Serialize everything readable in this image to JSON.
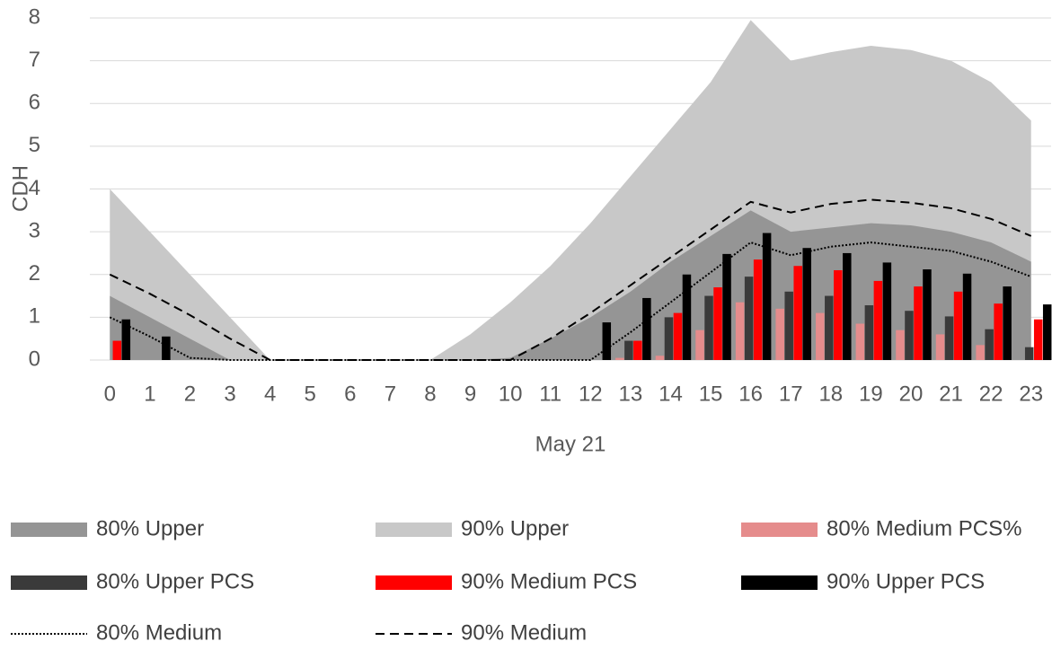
{
  "chart_data": {
    "type": "combo",
    "x_label": "May 21",
    "y_label": "CDH",
    "categories": [
      "0",
      "1",
      "2",
      "3",
      "4",
      "5",
      "6",
      "7",
      "8",
      "9",
      "10",
      "11",
      "12",
      "13",
      "14",
      "15",
      "16",
      "17",
      "18",
      "19",
      "20",
      "21",
      "22",
      "23"
    ],
    "ylim": [
      0,
      8
    ],
    "yticks": [
      0,
      1,
      2,
      3,
      4,
      5,
      6,
      7,
      8
    ],
    "grid": true,
    "series": [
      {
        "name": "80% Upper",
        "type": "area",
        "color": "#959595",
        "values": [
          1.5,
          1.0,
          0.5,
          0,
          0,
          0,
          0,
          0,
          0,
          0,
          0.05,
          0.5,
          1.0,
          1.6,
          2.3,
          2.9,
          3.5,
          3.0,
          3.1,
          3.2,
          3.15,
          3.0,
          2.75,
          2.3
        ]
      },
      {
        "name": "90% Upper",
        "type": "area",
        "color": "#c8c8c8",
        "values": [
          4.0,
          3.0,
          2.0,
          1.0,
          0,
          0,
          0,
          0,
          0,
          0.6,
          1.35,
          2.2,
          3.2,
          4.3,
          5.4,
          6.5,
          7.95,
          7.0,
          7.2,
          7.35,
          7.25,
          7.0,
          6.5,
          5.6
        ]
      },
      {
        "name": "80% Medium PCS%",
        "type": "bar",
        "color": "#e58c8c",
        "values": [
          0,
          0,
          0,
          0,
          0,
          0,
          0,
          0,
          0,
          0,
          0,
          0,
          0,
          0.05,
          0.1,
          0.7,
          1.35,
          1.2,
          1.1,
          0.85,
          0.7,
          0.6,
          0.35,
          0
        ]
      },
      {
        "name": "80% Upper PCS",
        "type": "bar",
        "color": "#3a3a3a",
        "values": [
          0,
          0,
          0,
          0,
          0,
          0,
          0,
          0,
          0,
          0,
          0,
          0,
          0,
          0.45,
          1.0,
          1.5,
          1.95,
          1.6,
          1.5,
          1.28,
          1.15,
          1.02,
          0.72,
          0.3
        ]
      },
      {
        "name": "90% Medium PCS",
        "type": "bar",
        "color": "#ff0000",
        "values": [
          0.45,
          0,
          0,
          0,
          0,
          0,
          0,
          0,
          0,
          0,
          0,
          0,
          0,
          0.45,
          1.1,
          1.7,
          2.35,
          2.2,
          2.1,
          1.85,
          1.72,
          1.6,
          1.32,
          0.95
        ]
      },
      {
        "name": "90% Upper PCS",
        "type": "bar",
        "color": "#000000",
        "values": [
          0.95,
          0.55,
          0,
          0,
          0,
          0,
          0,
          0,
          0,
          0,
          0,
          0,
          0.88,
          1.45,
          2.0,
          2.48,
          2.97,
          2.62,
          2.5,
          2.28,
          2.12,
          2.02,
          1.72,
          1.3
        ]
      },
      {
        "name": "80% Medium",
        "type": "line",
        "color": "#000000",
        "line_style": "dotted",
        "values": [
          1.0,
          0.55,
          0.05,
          0,
          0,
          0,
          0,
          0,
          0,
          0,
          0,
          0,
          0,
          0.65,
          1.35,
          2.05,
          2.75,
          2.45,
          2.65,
          2.75,
          2.65,
          2.55,
          2.3,
          1.95
        ]
      },
      {
        "name": "90% Medium",
        "type": "line",
        "color": "#000000",
        "line_style": "dashed",
        "values": [
          2.0,
          1.55,
          1.05,
          0.5,
          0,
          0,
          0,
          0,
          0,
          0,
          0,
          0.5,
          1.1,
          1.75,
          2.4,
          3.05,
          3.7,
          3.45,
          3.65,
          3.75,
          3.68,
          3.55,
          3.3,
          2.9
        ]
      }
    ]
  }
}
